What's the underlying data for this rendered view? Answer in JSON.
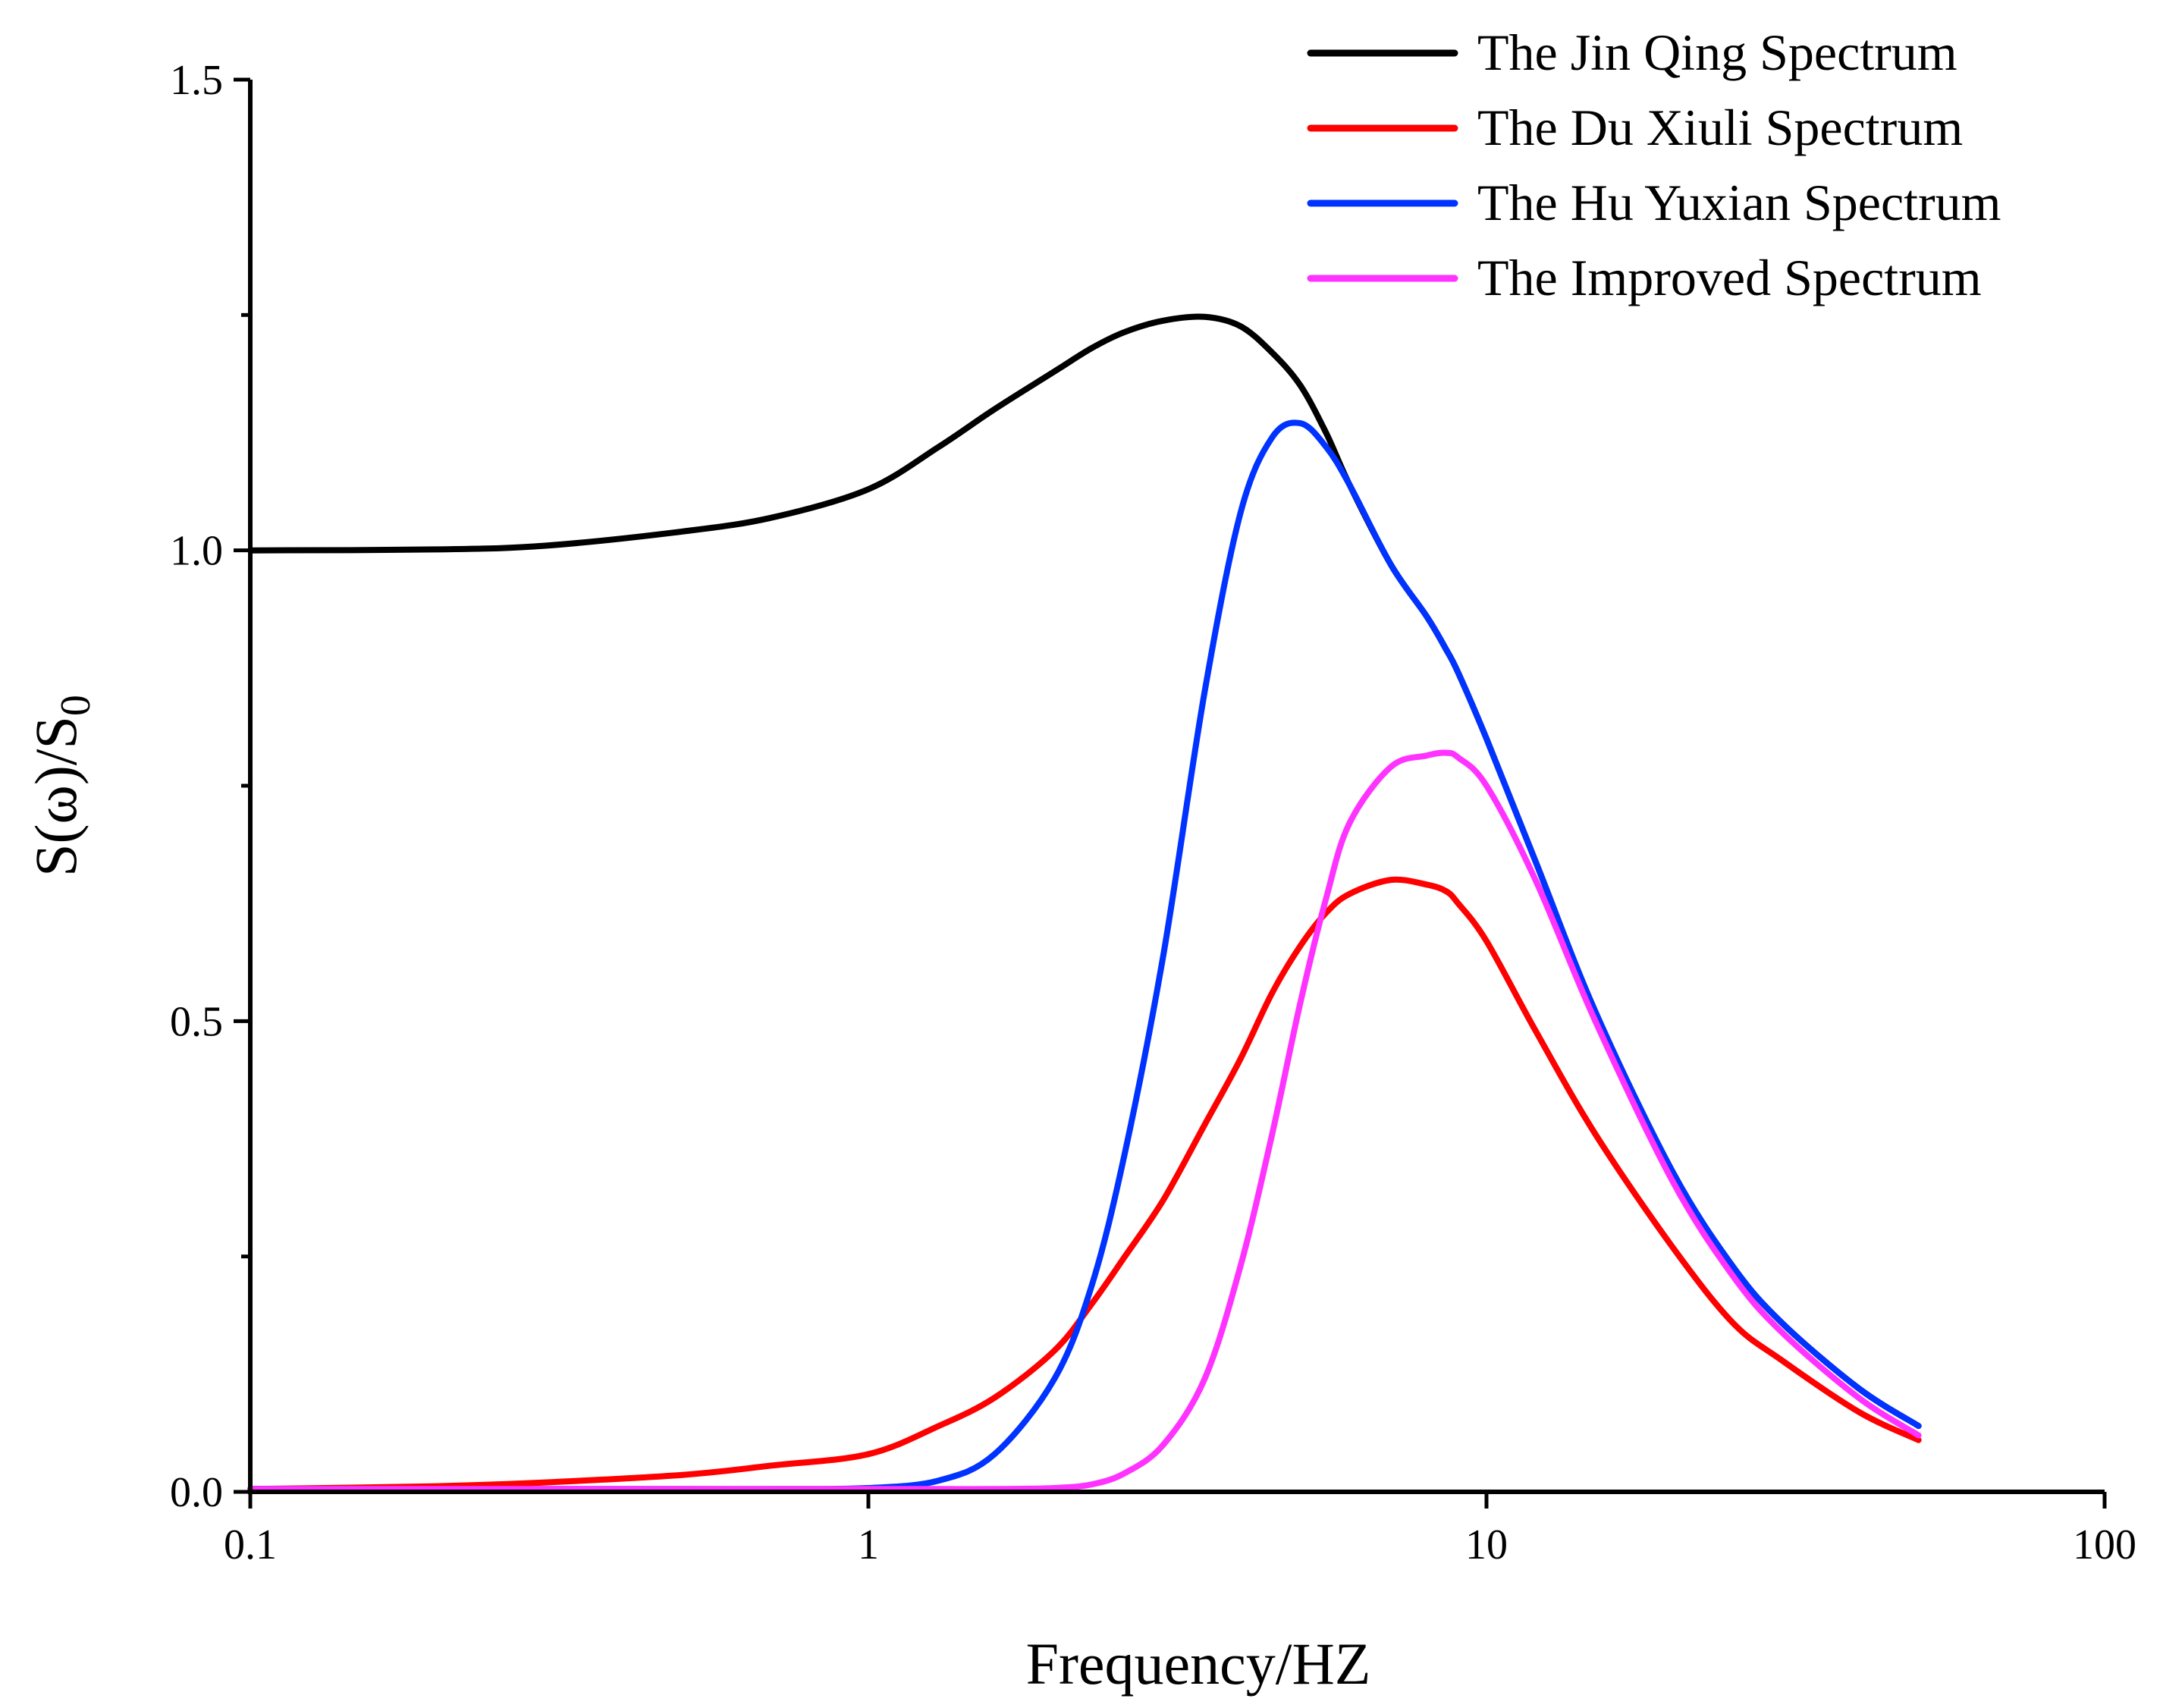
{
  "chart_data": {
    "type": "line",
    "title": "",
    "xlabel": "Frequency/HZ",
    "ylabel": "S(ω)/S",
    "ylabel_subscript": "0",
    "xscale": "log",
    "xlim": [
      0.1,
      100
    ],
    "ylim": [
      0.0,
      1.5
    ],
    "xticks": [
      0.1,
      1,
      10,
      100
    ],
    "xtick_labels": [
      "0.1",
      "1",
      "10",
      "100"
    ],
    "yticks": [
      0.0,
      0.5,
      1.0,
      1.5
    ],
    "ytick_labels": [
      "0.0",
      "0.5",
      "1.0",
      "1.5"
    ],
    "y_minor_ticks": [
      0.25,
      0.75,
      1.25
    ],
    "grid": false,
    "legend_position": "top-right",
    "x": [
      0.1,
      0.2,
      0.3,
      0.5,
      0.7,
      1.0,
      1.3,
      1.6,
      2.0,
      2.3,
      2.6,
      3.0,
      3.5,
      4.0,
      4.5,
      5.0,
      5.5,
      6.0,
      7.0,
      8.0,
      8.6,
      9.0,
      10,
      12,
      15,
      20,
      25,
      30,
      40,
      50
    ],
    "series": [
      {
        "name": "The Jin Qing Spectrum",
        "color": "#000000",
        "values": [
          1.0,
          1.001,
          1.005,
          1.02,
          1.035,
          1.065,
          1.11,
          1.15,
          1.19,
          1.215,
          1.232,
          1.244,
          1.248,
          1.238,
          1.21,
          1.175,
          1.125,
          1.07,
          0.985,
          0.93,
          0.895,
          0.87,
          0.8,
          0.67,
          0.51,
          0.34,
          0.24,
          0.18,
          0.11,
          0.07
        ]
      },
      {
        "name": "The Du Xiuli Spectrum",
        "color": "#ff0000",
        "values": [
          0.003,
          0.006,
          0.01,
          0.018,
          0.028,
          0.04,
          0.07,
          0.1,
          0.15,
          0.2,
          0.25,
          0.31,
          0.39,
          0.46,
          0.53,
          0.58,
          0.615,
          0.635,
          0.65,
          0.645,
          0.638,
          0.625,
          0.585,
          0.49,
          0.38,
          0.26,
          0.18,
          0.14,
          0.085,
          0.055
        ]
      },
      {
        "name": "The Hu Yuxian Spectrum",
        "color": "#0033ff",
        "values": [
          0.003,
          0.003,
          0.003,
          0.003,
          0.003,
          0.004,
          0.012,
          0.04,
          0.12,
          0.22,
          0.36,
          0.57,
          0.85,
          1.04,
          1.12,
          1.135,
          1.11,
          1.07,
          0.985,
          0.93,
          0.895,
          0.87,
          0.8,
          0.67,
          0.51,
          0.34,
          0.24,
          0.18,
          0.11,
          0.07
        ]
      },
      {
        "name": "The Improved Spectrum",
        "color": "#ff33ff",
        "values": [
          0.003,
          0.003,
          0.003,
          0.003,
          0.003,
          0.003,
          0.003,
          0.003,
          0.004,
          0.008,
          0.02,
          0.05,
          0.12,
          0.24,
          0.38,
          0.52,
          0.63,
          0.71,
          0.77,
          0.782,
          0.785,
          0.78,
          0.75,
          0.65,
          0.5,
          0.33,
          0.23,
          0.17,
          0.1,
          0.06
        ]
      }
    ]
  }
}
